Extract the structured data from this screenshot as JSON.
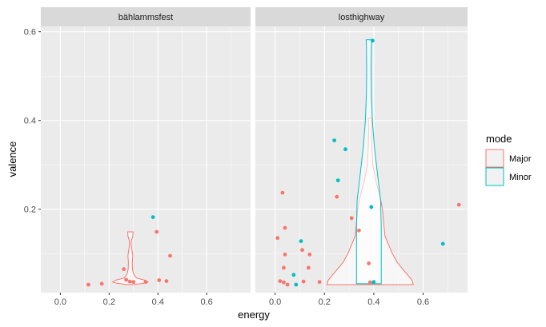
{
  "chart_data": {
    "type": "violin+jitter",
    "xlabel": "energy",
    "ylabel": "valence",
    "xlim": [
      -0.08,
      0.78
    ],
    "ylim": [
      0.012,
      0.612
    ],
    "x_ticks": [
      0.0,
      0.2,
      0.4,
      0.6
    ],
    "x_tick_labels": [
      "0.0",
      "0.2",
      "0.4",
      "0.6"
    ],
    "y_ticks": [
      0.2,
      0.4,
      0.6
    ],
    "y_tick_labels": [
      "0.2",
      "0.4",
      "0.6"
    ],
    "legend": {
      "title": "mode",
      "position": "right",
      "entries": [
        {
          "label": "Major",
          "color": "#F8766D"
        },
        {
          "label": "Minor",
          "color": "#00BFC4"
        }
      ]
    },
    "colors": {
      "panel_bg": "#EBEBEB",
      "strip_bg": "#D9D9D9",
      "grid": "#FFFFFF",
      "Major": "#F8766D",
      "Minor": "#00BFC4"
    },
    "panels": [
      {
        "strip": "bählammsfest",
        "points": [
          {
            "x": 0.115,
            "y": 0.03,
            "mode": "Major"
          },
          {
            "x": 0.17,
            "y": 0.032,
            "mode": "Major"
          },
          {
            "x": 0.26,
            "y": 0.065,
            "mode": "Major"
          },
          {
            "x": 0.27,
            "y": 0.041,
            "mode": "Major"
          },
          {
            "x": 0.285,
            "y": 0.037,
            "mode": "Major"
          },
          {
            "x": 0.3,
            "y": 0.036,
            "mode": "Major"
          },
          {
            "x": 0.35,
            "y": 0.036,
            "mode": "Major"
          },
          {
            "x": 0.38,
            "y": 0.182,
            "mode": "Minor"
          },
          {
            "x": 0.395,
            "y": 0.149,
            "mode": "Major"
          },
          {
            "x": 0.405,
            "y": 0.04,
            "mode": "Major"
          },
          {
            "x": 0.435,
            "y": 0.038,
            "mode": "Major"
          },
          {
            "x": 0.45,
            "y": 0.095,
            "mode": "Major"
          }
        ],
        "violins": [
          {
            "mode": "Major",
            "x_center": 0.287,
            "profile": [
              {
                "y": 0.03,
                "w": 0.03
              },
              {
                "y": 0.033,
                "w": 0.11
              },
              {
                "y": 0.036,
                "w": 0.145
              },
              {
                "y": 0.04,
                "w": 0.12
              },
              {
                "y": 0.045,
                "w": 0.05
              },
              {
                "y": 0.055,
                "w": 0.025
              },
              {
                "y": 0.065,
                "w": 0.018
              },
              {
                "y": 0.08,
                "w": 0.016
              },
              {
                "y": 0.095,
                "w": 0.02
              },
              {
                "y": 0.11,
                "w": 0.012
              },
              {
                "y": 0.122,
                "w": 0.006
              },
              {
                "y": 0.13,
                "w": 0.01
              },
              {
                "y": 0.14,
                "w": 0.02
              },
              {
                "y": 0.149,
                "w": 0.022
              }
            ]
          }
        ]
      },
      {
        "strip": "losthighway",
        "points": [
          {
            "x": 0.01,
            "y": 0.135,
            "mode": "Major"
          },
          {
            "x": 0.02,
            "y": 0.038,
            "mode": "Major"
          },
          {
            "x": 0.03,
            "y": 0.237,
            "mode": "Major"
          },
          {
            "x": 0.035,
            "y": 0.068,
            "mode": "Major"
          },
          {
            "x": 0.035,
            "y": 0.035,
            "mode": "Major"
          },
          {
            "x": 0.04,
            "y": 0.158,
            "mode": "Major"
          },
          {
            "x": 0.04,
            "y": 0.098,
            "mode": "Major"
          },
          {
            "x": 0.05,
            "y": 0.03,
            "mode": "Major"
          },
          {
            "x": 0.075,
            "y": 0.052,
            "mode": "Minor"
          },
          {
            "x": 0.085,
            "y": 0.03,
            "mode": "Minor"
          },
          {
            "x": 0.105,
            "y": 0.128,
            "mode": "Minor"
          },
          {
            "x": 0.11,
            "y": 0.108,
            "mode": "Major"
          },
          {
            "x": 0.115,
            "y": 0.037,
            "mode": "Major"
          },
          {
            "x": 0.135,
            "y": 0.068,
            "mode": "Major"
          },
          {
            "x": 0.14,
            "y": 0.098,
            "mode": "Major"
          },
          {
            "x": 0.18,
            "y": 0.036,
            "mode": "Major"
          },
          {
            "x": 0.24,
            "y": 0.355,
            "mode": "Minor"
          },
          {
            "x": 0.25,
            "y": 0.228,
            "mode": "Major"
          },
          {
            "x": 0.255,
            "y": 0.265,
            "mode": "Minor"
          },
          {
            "x": 0.285,
            "y": 0.335,
            "mode": "Minor"
          },
          {
            "x": 0.31,
            "y": 0.18,
            "mode": "Major"
          },
          {
            "x": 0.34,
            "y": 0.152,
            "mode": "Major"
          },
          {
            "x": 0.38,
            "y": 0.078,
            "mode": "Major"
          },
          {
            "x": 0.385,
            "y": 0.035,
            "mode": "Major"
          },
          {
            "x": 0.39,
            "y": 0.205,
            "mode": "Minor"
          },
          {
            "x": 0.395,
            "y": 0.58,
            "mode": "Minor"
          },
          {
            "x": 0.4,
            "y": 0.036,
            "mode": "Minor"
          },
          {
            "x": 0.68,
            "y": 0.122,
            "mode": "Minor"
          },
          {
            "x": 0.745,
            "y": 0.21,
            "mode": "Major"
          }
        ],
        "violins": [
          {
            "mode": "Major",
            "x_center": 0.385,
            "profile": [
              {
                "y": 0.03,
                "w": 0.35
              },
              {
                "y": 0.04,
                "w": 0.34
              },
              {
                "y": 0.06,
                "w": 0.28
              },
              {
                "y": 0.08,
                "w": 0.22
              },
              {
                "y": 0.1,
                "w": 0.18
              },
              {
                "y": 0.12,
                "w": 0.15
              },
              {
                "y": 0.14,
                "w": 0.12
              },
              {
                "y": 0.17,
                "w": 0.11
              },
              {
                "y": 0.2,
                "w": 0.1
              },
              {
                "y": 0.23,
                "w": 0.08
              },
              {
                "y": 0.26,
                "w": 0.05
              },
              {
                "y": 0.3,
                "w": 0.022
              },
              {
                "y": 0.34,
                "w": 0.015
              },
              {
                "y": 0.37,
                "w": 0.012
              },
              {
                "y": 0.39,
                "w": 0.012
              },
              {
                "y": 0.405,
                "w": 0.015
              }
            ]
          },
          {
            "mode": "Minor",
            "x_center": 0.38,
            "profile": [
              {
                "y": 0.032,
                "w": 0.1
              },
              {
                "y": 0.1,
                "w": 0.1
              },
              {
                "y": 0.16,
                "w": 0.1
              },
              {
                "y": 0.22,
                "w": 0.095
              },
              {
                "y": 0.28,
                "w": 0.07
              },
              {
                "y": 0.34,
                "w": 0.045
              },
              {
                "y": 0.4,
                "w": 0.028
              },
              {
                "y": 0.46,
                "w": 0.02
              },
              {
                "y": 0.52,
                "w": 0.018
              },
              {
                "y": 0.565,
                "w": 0.02
              },
              {
                "y": 0.582,
                "w": 0.022
              }
            ]
          }
        ]
      }
    ]
  }
}
